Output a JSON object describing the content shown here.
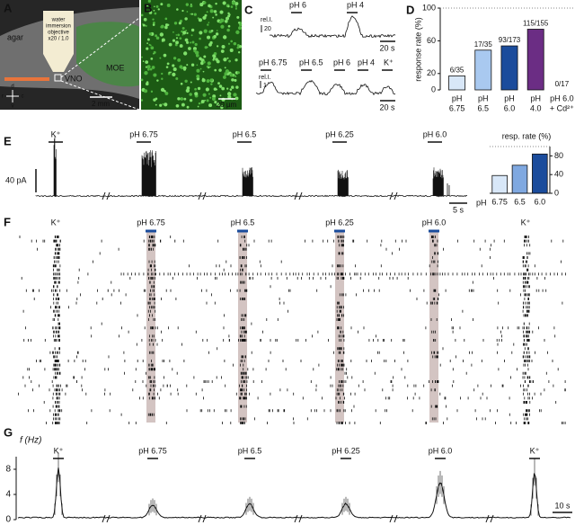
{
  "figure": {
    "panel_a": {
      "label": "A",
      "agar": "agar",
      "objective": [
        "water",
        "immersion",
        "objective",
        "x20 / 1.0"
      ],
      "moe": "MOE",
      "vno": "VNO",
      "scale": "2 mm",
      "axes": [
        "d",
        "r",
        "c",
        "v"
      ]
    },
    "panel_b": {
      "label": "B",
      "scale": "20 µm"
    },
    "panel_c": {
      "label": "C",
      "top": {
        "unit": "rel.I.",
        "scale_y": "20",
        "stimuli": [
          "pH 6",
          "pH 4"
        ],
        "scale_x": "20 s"
      },
      "bottom": {
        "unit": "rel.I.",
        "scale_y": "1",
        "stimuli": [
          "pH 6.75",
          "pH 6.5",
          "pH 6",
          "pH 4",
          "K⁺"
        ],
        "scale_x": "20 s"
      }
    },
    "panel_e": {
      "label": "E",
      "stimuli": [
        "K⁺",
        "pH 6.75",
        "pH 6.5",
        "pH 6.25",
        "pH 6.0"
      ],
      "scale_y": "40 pA",
      "scale_x": "5 s"
    },
    "panel_f": {
      "label": "F",
      "stimuli": [
        "K⁺",
        "pH 6.75",
        "pH 6.5",
        "pH 6.25",
        "pH 6.0",
        "K⁺"
      ]
    },
    "panel_g": {
      "label": "G",
      "y_label": "f (Hz)",
      "ylim": [
        0,
        10
      ],
      "yticks": [
        0,
        4,
        8
      ],
      "stimuli": [
        "K⁺",
        "pH 6.75",
        "pH 6.5",
        "pH 6.25",
        "pH 6.0",
        "K⁺"
      ],
      "scale_x": "10 s"
    }
  },
  "chart_data": [
    {
      "type": "bar",
      "label": "D",
      "y_label": "response rate (%)",
      "categories": [
        [
          "pH",
          "6.75"
        ],
        [
          "pH",
          "6.5"
        ],
        [
          "pH",
          "6.0"
        ],
        [
          "pH",
          "4.0"
        ],
        [
          "pH 6.0",
          "+ Cd²⁺"
        ]
      ],
      "values": [
        17.1,
        48.6,
        53.8,
        74.2,
        0
      ],
      "value_labels": [
        "6/35",
        "17/35",
        "93/173",
        "115/155",
        "0/17"
      ],
      "colors": [
        "#d8e7f8",
        "#a9c9f0",
        "#1b4c9c",
        "#6b2d84",
        "#ffffff"
      ],
      "ylim": [
        0,
        100
      ],
      "yticks": [
        0,
        20,
        60,
        100
      ]
    },
    {
      "type": "bar",
      "title": "resp. rate (%)",
      "x_label": "pH",
      "categories": [
        "6.75",
        "6.5",
        "6.0"
      ],
      "values": [
        38,
        60,
        84
      ],
      "colors": [
        "#d8e7f8",
        "#7fa8e0",
        "#1b4c9c"
      ],
      "ylim": [
        0,
        100
      ],
      "yticks": [
        0,
        40,
        80
      ]
    }
  ]
}
